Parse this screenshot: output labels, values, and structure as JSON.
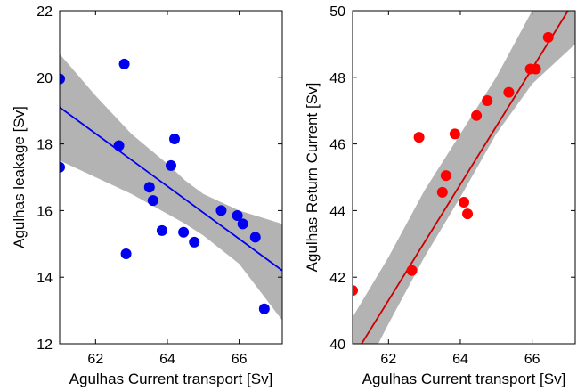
{
  "chart_data": [
    {
      "type": "scatter",
      "xlabel": "Agulhas Current transport [Sv]",
      "ylabel": "Agulhas leakage [Sv]",
      "xlim": [
        61,
        67.2
      ],
      "ylim": [
        12,
        22
      ],
      "xticks": [
        62,
        64,
        66
      ],
      "yticks": [
        12,
        14,
        16,
        18,
        20,
        22
      ],
      "grid": false,
      "point_color": "#0000ee",
      "line_color": "#0000ee",
      "band_color": "#b3b3b3",
      "points": [
        {
          "x": 61.0,
          "y": 19.95
        },
        {
          "x": 61.0,
          "y": 17.3
        },
        {
          "x": 62.65,
          "y": 17.95
        },
        {
          "x": 62.8,
          "y": 20.4
        },
        {
          "x": 62.85,
          "y": 14.7
        },
        {
          "x": 63.5,
          "y": 16.7
        },
        {
          "x": 63.6,
          "y": 16.3
        },
        {
          "x": 63.85,
          "y": 15.4
        },
        {
          "x": 64.1,
          "y": 17.35
        },
        {
          "x": 64.2,
          "y": 18.15
        },
        {
          "x": 64.45,
          "y": 15.35
        },
        {
          "x": 64.75,
          "y": 15.05
        },
        {
          "x": 65.5,
          "y": 16.0
        },
        {
          "x": 65.95,
          "y": 15.85
        },
        {
          "x": 66.1,
          "y": 15.6
        },
        {
          "x": 66.45,
          "y": 15.2
        },
        {
          "x": 66.7,
          "y": 13.05
        }
      ],
      "fit": {
        "x": [
          61.0,
          67.2
        ],
        "y": [
          19.1,
          14.2
        ]
      },
      "band": {
        "x": [
          61.0,
          62.0,
          63.0,
          64.0,
          64.5,
          65.0,
          66.0,
          67.2
        ],
        "upper": [
          20.7,
          19.45,
          18.3,
          17.4,
          16.9,
          16.5,
          16.0,
          15.6
        ],
        "lower": [
          17.5,
          17.0,
          16.5,
          15.9,
          15.6,
          15.25,
          14.4,
          12.7
        ]
      }
    },
    {
      "type": "scatter",
      "xlabel": "Agulhas Current transport [Sv]",
      "ylabel": "Agulhas Return Current [Sv]",
      "xlim": [
        61,
        67.2
      ],
      "ylim": [
        40,
        50
      ],
      "xticks": [
        62,
        64,
        66
      ],
      "yticks": [
        40,
        42,
        44,
        46,
        48,
        50
      ],
      "grid": false,
      "point_color": "#ff0000",
      "line_color": "#cc0000",
      "band_color": "#b3b3b3",
      "points": [
        {
          "x": 61.0,
          "y": 41.6
        },
        {
          "x": 62.65,
          "y": 42.2
        },
        {
          "x": 62.85,
          "y": 46.2
        },
        {
          "x": 63.5,
          "y": 44.55
        },
        {
          "x": 63.6,
          "y": 45.05
        },
        {
          "x": 63.85,
          "y": 46.3
        },
        {
          "x": 64.1,
          "y": 44.25
        },
        {
          "x": 64.2,
          "y": 43.9
        },
        {
          "x": 64.45,
          "y": 46.85
        },
        {
          "x": 64.75,
          "y": 47.3
        },
        {
          "x": 65.35,
          "y": 47.55
        },
        {
          "x": 65.95,
          "y": 48.25
        },
        {
          "x": 66.1,
          "y": 48.25
        },
        {
          "x": 66.45,
          "y": 49.2
        }
      ],
      "fit": {
        "x": [
          61.25,
          67.0
        ],
        "y": [
          40.0,
          50.0
        ]
      },
      "band": {
        "x": [
          61.0,
          62.0,
          63.0,
          64.0,
          65.0,
          66.0,
          67.2
        ],
        "upper": [
          40.8,
          42.6,
          44.6,
          46.3,
          48.0,
          50.0,
          51.5
        ],
        "lower": [
          38.5,
          40.6,
          42.6,
          44.4,
          46.3,
          47.8,
          49.0
        ]
      }
    }
  ]
}
